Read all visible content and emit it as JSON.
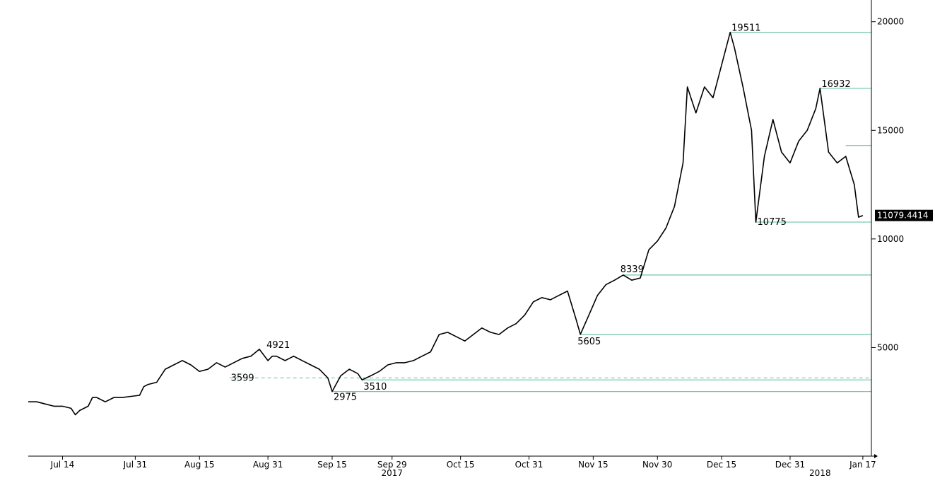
{
  "chart_data": {
    "type": "line",
    "title": "",
    "xlabel": "",
    "ylabel": "",
    "ylim": [
      0,
      21000
    ],
    "y_ticks": [
      5000,
      10000,
      15000,
      20000
    ],
    "y_axis_position": "right",
    "grid": false,
    "x_ticks": [
      {
        "label": "Jul 14",
        "date": "2017-07-14"
      },
      {
        "label": "Jul 31",
        "date": "2017-07-31"
      },
      {
        "label": "Aug 15",
        "date": "2017-08-15"
      },
      {
        "label": "Aug 31",
        "date": "2017-08-31"
      },
      {
        "label": "Sep 15",
        "date": "2017-09-15"
      },
      {
        "label": "Sep 29",
        "date": "2017-09-29"
      },
      {
        "label": "Oct 15",
        "date": "2017-10-15"
      },
      {
        "label": "Oct 31",
        "date": "2017-10-31"
      },
      {
        "label": "Nov 15",
        "date": "2017-11-15"
      },
      {
        "label": "Nov 30",
        "date": "2017-11-30"
      },
      {
        "label": "Dec 15",
        "date": "2017-12-15"
      },
      {
        "label": "Dec 31",
        "date": "2017-12-31"
      },
      {
        "label": "Jan 17",
        "date": "2018-01-17"
      }
    ],
    "year_labels": [
      {
        "label": "2017",
        "date": "2017-09-29"
      },
      {
        "label": "2018",
        "date": "2018-01-07"
      }
    ],
    "series": [
      {
        "color": "#000000",
        "x": [
          "2017-07-06",
          "2017-07-08",
          "2017-07-10",
          "2017-07-12",
          "2017-07-14",
          "2017-07-16",
          "2017-07-17",
          "2017-07-18",
          "2017-07-20",
          "2017-07-21",
          "2017-07-22",
          "2017-07-24",
          "2017-07-26",
          "2017-07-28",
          "2017-07-30",
          "2017-08-01",
          "2017-08-02",
          "2017-08-03",
          "2017-08-05",
          "2017-08-07",
          "2017-08-09",
          "2017-08-11",
          "2017-08-13",
          "2017-08-15",
          "2017-08-17",
          "2017-08-19",
          "2017-08-21",
          "2017-08-23",
          "2017-08-25",
          "2017-08-27",
          "2017-08-29",
          "2017-08-31",
          "2017-09-01",
          "2017-09-02",
          "2017-09-04",
          "2017-09-06",
          "2017-09-08",
          "2017-09-10",
          "2017-09-12",
          "2017-09-14",
          "2017-09-15",
          "2017-09-17",
          "2017-09-19",
          "2017-09-21",
          "2017-09-22",
          "2017-09-24",
          "2017-09-26",
          "2017-09-28",
          "2017-09-30",
          "2017-10-02",
          "2017-10-04",
          "2017-10-06",
          "2017-10-08",
          "2017-10-10",
          "2017-10-12",
          "2017-10-14",
          "2017-10-16",
          "2017-10-18",
          "2017-10-20",
          "2017-10-22",
          "2017-10-24",
          "2017-10-26",
          "2017-10-28",
          "2017-10-30",
          "2017-11-01",
          "2017-11-03",
          "2017-11-05",
          "2017-11-07",
          "2017-11-09",
          "2017-11-11",
          "2017-11-12",
          "2017-11-14",
          "2017-11-16",
          "2017-11-18",
          "2017-11-20",
          "2017-11-22",
          "2017-11-24",
          "2017-11-26",
          "2017-11-28",
          "2017-11-30",
          "2017-12-02",
          "2017-12-04",
          "2017-12-06",
          "2017-12-07",
          "2017-12-09",
          "2017-12-11",
          "2017-12-13",
          "2017-12-15",
          "2017-12-17",
          "2017-12-18",
          "2017-12-20",
          "2017-12-22",
          "2017-12-23",
          "2017-12-25",
          "2017-12-27",
          "2017-12-29",
          "2017-12-31",
          "2018-01-02",
          "2018-01-04",
          "2018-01-06",
          "2018-01-07",
          "2018-01-09",
          "2018-01-11",
          "2018-01-13",
          "2018-01-15",
          "2018-01-16",
          "2018-01-17"
        ],
        "y": [
          2500,
          2500,
          2400,
          2300,
          2300,
          2200,
          1900,
          2100,
          2300,
          2700,
          2700,
          2500,
          2700,
          2700,
          2750,
          2800,
          3200,
          3300,
          3400,
          4000,
          4200,
          4400,
          4200,
          3900,
          4000,
          4300,
          4100,
          4300,
          4500,
          4600,
          4921,
          4400,
          4600,
          4600,
          4400,
          4600,
          4400,
          4200,
          4000,
          3600,
          2975,
          3700,
          4000,
          3800,
          3510,
          3700,
          3900,
          4200,
          4300,
          4300,
          4400,
          4600,
          4800,
          5600,
          5700,
          5500,
          5300,
          5600,
          5900,
          5700,
          5600,
          5900,
          6100,
          6500,
          7100,
          7300,
          7200,
          7400,
          7600,
          6300,
          5605,
          6500,
          7400,
          7900,
          8100,
          8339,
          8100,
          8200,
          9500,
          9900,
          10500,
          11500,
          13500,
          17000,
          15800,
          17000,
          16500,
          18000,
          19511,
          18800,
          17000,
          15000,
          10775,
          13800,
          15500,
          14000,
          13500,
          14500,
          15000,
          16000,
          16932,
          14000,
          13500,
          13800,
          12500,
          11000,
          11079.4414
        ]
      }
    ],
    "annotations": [
      {
        "label": "19511",
        "date": "2017-12-17",
        "value": 19511
      },
      {
        "label": "16932",
        "date": "2018-01-07",
        "value": 16932
      },
      {
        "label": "10775",
        "date": "2017-12-23",
        "value": 10775
      },
      {
        "label": "8339",
        "date": "2017-11-22",
        "value": 8339
      },
      {
        "label": "5605",
        "date": "2017-11-12",
        "value": 5605
      },
      {
        "label": "4921",
        "date": "2017-08-31",
        "value": 4921
      },
      {
        "label": "3599",
        "date": "2017-08-22",
        "value": 3599
      },
      {
        "label": "2975",
        "date": "2017-09-15",
        "value": 2975
      },
      {
        "label": "3510",
        "date": "2017-09-22",
        "value": 3510
      }
    ],
    "level_lines": [
      {
        "value": 19511,
        "from": "2017-12-17",
        "style": "solid"
      },
      {
        "value": 16932,
        "from": "2018-01-07",
        "style": "solid"
      },
      {
        "value": 14300,
        "from": "2018-01-13",
        "style": "solid"
      },
      {
        "value": 10775,
        "from": "2017-12-23",
        "style": "solid"
      },
      {
        "value": 8339,
        "from": "2017-11-22",
        "style": "solid"
      },
      {
        "value": 5605,
        "from": "2017-11-12",
        "style": "solid"
      },
      {
        "value": 3599,
        "from": "2017-08-22",
        "style": "dashed"
      },
      {
        "value": 3510,
        "from": "2017-09-22",
        "style": "solid"
      },
      {
        "value": 2975,
        "from": "2017-09-15",
        "style": "solid"
      }
    ],
    "last_value": {
      "label": "11079.4414",
      "value": 11079.4414
    },
    "colors": {
      "line": "#000000",
      "levels": "#6fc6a3",
      "tag_bg": "#000000",
      "tag_text": "#ffffff"
    }
  }
}
